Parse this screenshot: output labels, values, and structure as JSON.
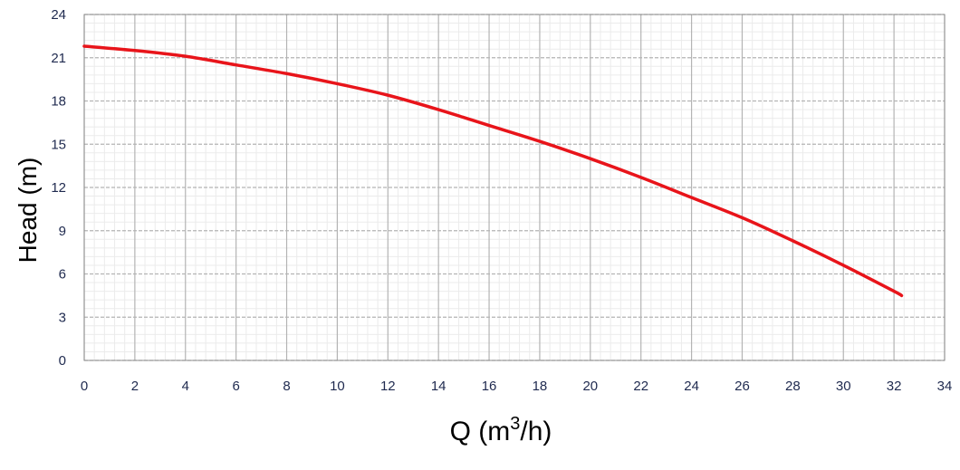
{
  "chart_data": {
    "type": "line",
    "title": "",
    "xlabel": "Q (m",
    "xlabel_sup": "3",
    "xlabel_tail": "/h)",
    "ylabel": "Head (m)",
    "xlim": [
      0,
      34
    ],
    "ylim": [
      0,
      24
    ],
    "x_ticks": [
      0,
      2,
      4,
      6,
      8,
      10,
      12,
      14,
      16,
      18,
      20,
      22,
      24,
      26,
      28,
      30,
      32,
      34
    ],
    "y_ticks": [
      0,
      3,
      6,
      9,
      12,
      15,
      18,
      21,
      24
    ],
    "x_tick_labels": [
      "0",
      "2",
      "4",
      "6",
      "8",
      "10",
      "12",
      "14",
      "16",
      "18",
      "20",
      "22",
      "24",
      "26",
      "28",
      "30",
      "32",
      "34"
    ],
    "y_tick_labels": [
      "0",
      "3",
      "6",
      "9",
      "12",
      "15",
      "18",
      "21",
      "24"
    ],
    "grid": true,
    "minor_grid": true,
    "legend": "none",
    "series": [
      {
        "color": "#e8141a",
        "x": [
          0,
          2,
          4,
          6,
          8,
          10,
          12,
          14,
          16,
          18,
          20,
          22,
          24,
          26,
          28,
          30,
          32,
          32.3
        ],
        "y": [
          21.8,
          21.5,
          21.1,
          20.5,
          19.9,
          19.2,
          18.4,
          17.4,
          16.3,
          15.2,
          14.0,
          12.7,
          11.3,
          9.9,
          8.3,
          6.6,
          4.8,
          4.5
        ]
      }
    ]
  }
}
